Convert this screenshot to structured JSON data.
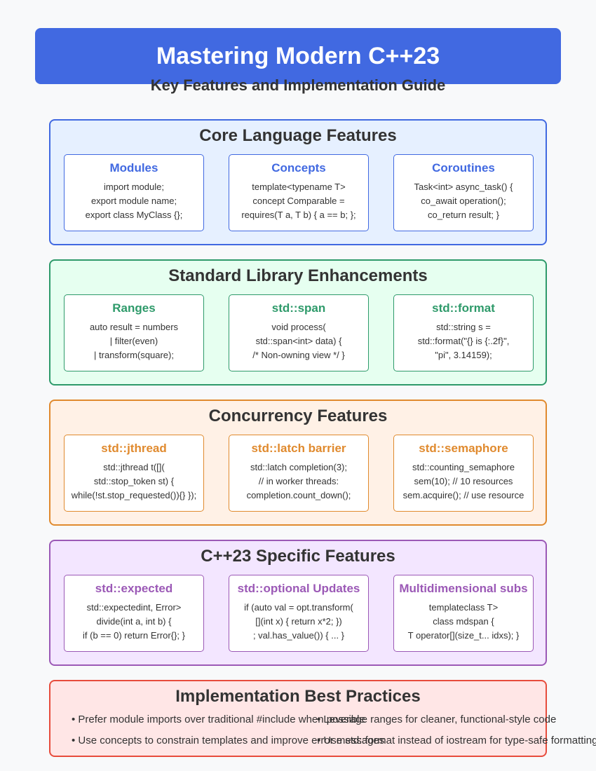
{
  "header": {
    "title": "Mastering Modern C++23",
    "subtitle": "Key Features and Implementation Guide"
  },
  "sections": [
    {
      "title": "Core Language Features",
      "color": "#4169e1",
      "cards": [
        {
          "title": "Modules",
          "lines": [
            "import module;",
            "export module name;",
            "export class MyClass {};"
          ]
        },
        {
          "title": "Concepts",
          "lines": [
            "template<typename T>",
            "concept Comparable =",
            "requires(T a, T b) { a == b; };"
          ]
        },
        {
          "title": "Coroutines",
          "lines": [
            "Task<int> async_task() {",
            "co_await operation();",
            "co_return result; }"
          ]
        }
      ]
    },
    {
      "title": "Standard Library Enhancements",
      "color": "#2e9a6a",
      "cards": [
        {
          "title": "Ranges",
          "lines": [
            "auto result = numbers",
            "| filter(even)",
            "| transform(square);"
          ]
        },
        {
          "title": "std::span",
          "lines": [
            "void process(",
            "std::span<int> data) {",
            "/* Non-owning view */ }"
          ]
        },
        {
          "title": "std::format",
          "lines": [
            "std::string s =",
            "std::format(\"{} is {:.2f}\",",
            "\"pi\", 3.14159);"
          ]
        }
      ]
    },
    {
      "title": "Concurrency Features",
      "color": "#e08a2e",
      "cards": [
        {
          "title": "std::jthread",
          "lines": [
            "std::jthread t([](",
            "std::stop_token st) {",
            "while(!st.stop_requested()){} });"
          ]
        },
        {
          "title": "std::latch barrier",
          "lines": [
            "std::latch completion(3);",
            "// in worker threads:",
            "completion.count_down();"
          ]
        },
        {
          "title": "std::semaphore",
          "lines": [
            "std::counting_semaphore",
            "sem(10); // 10 resources",
            "sem.acquire(); // use resource"
          ]
        }
      ]
    },
    {
      "title": "C++23 Specific Features",
      "color": "#9b59b6",
      "cards": [
        {
          "title": "std::expected",
          "lines": [
            "std::expectedint, Error>",
            "divide(int a, int b) {",
            "if (b == 0) return Error{}; }"
          ]
        },
        {
          "title": "std::optional Updates",
          "lines": [
            "if (auto val = opt.transform(",
            "[](int x) { return x*2; })",
            "; val.has_value()) { ... }"
          ]
        },
        {
          "title": "Multidimensional subs",
          "lines": [
            "templateclass T>",
            "class mdspan {",
            "T operator[](size_t... idxs); }"
          ]
        }
      ]
    }
  ],
  "best_practices": {
    "title": "Implementation Best Practices",
    "items": [
      "• Prefer module imports over traditional #include when possible",
      "• Use concepts to constrain templates and improve error messages",
      "• Leverage ranges for cleaner, functional-style code",
      "• Use std::format instead of iostream for type-safe formatting"
    ]
  }
}
